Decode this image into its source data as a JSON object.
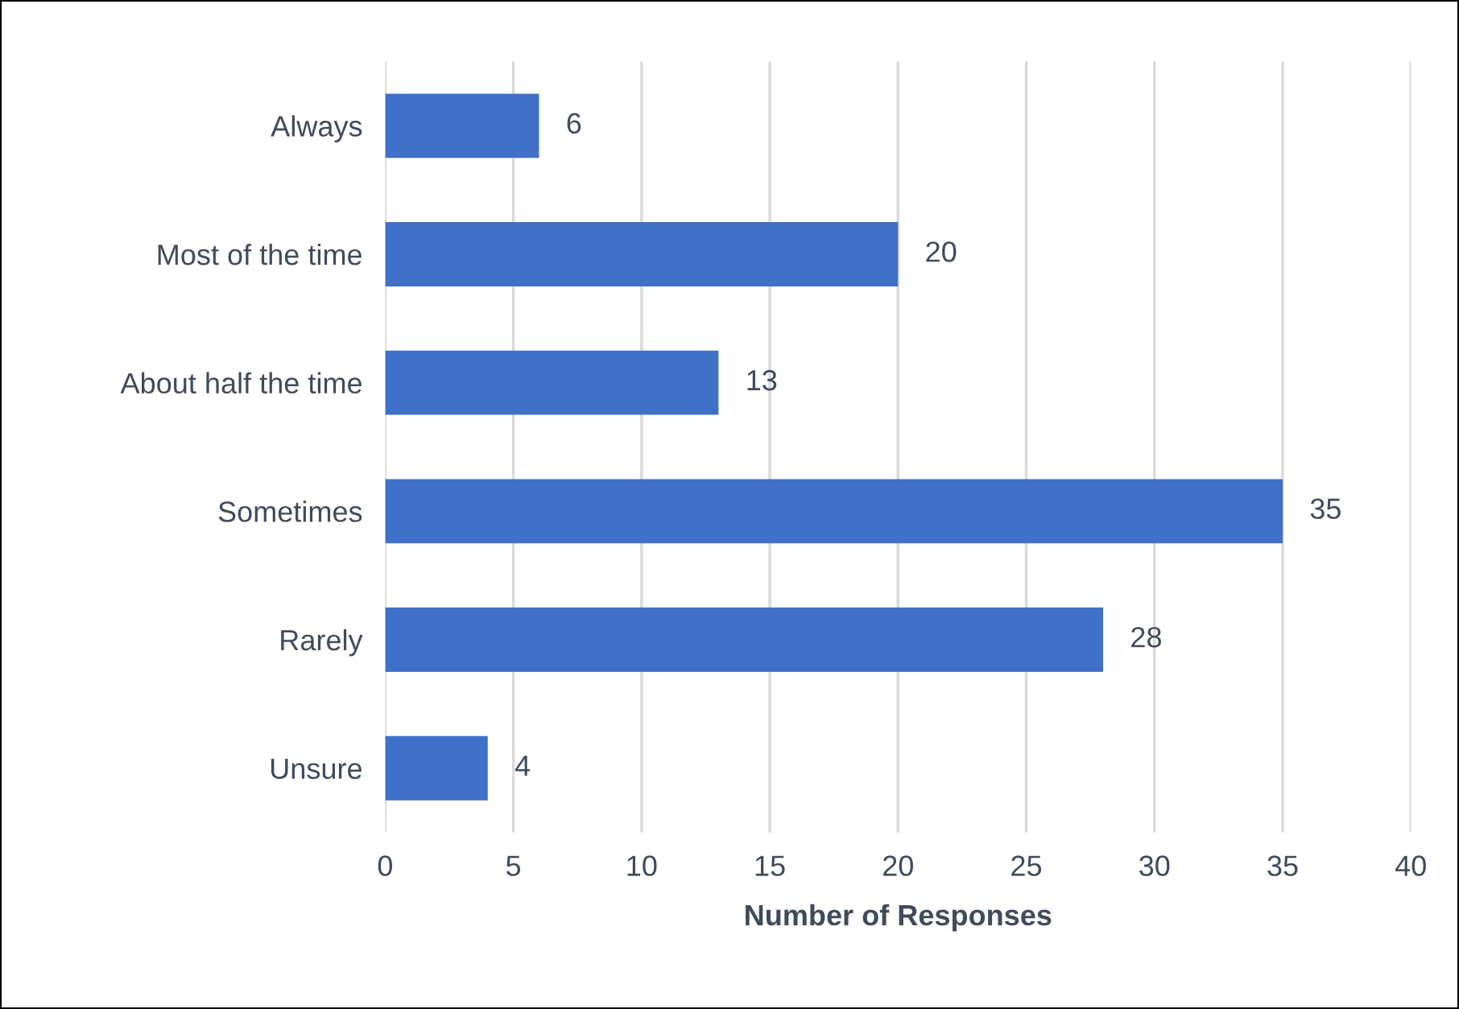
{
  "chart_data": {
    "type": "bar",
    "orientation": "horizontal",
    "categories": [
      "Always",
      "Most of the time",
      "About half the time",
      "Sometimes",
      "Rarely",
      "Unsure"
    ],
    "values": [
      6,
      20,
      13,
      35,
      28,
      4
    ],
    "color": "#4070c8",
    "xlabel": "Number of Responses",
    "xlim": [
      0,
      40
    ],
    "xticks": [
      0,
      5,
      10,
      15,
      20,
      25,
      30,
      35,
      40
    ],
    "grid": "x",
    "data_labels": true
  }
}
